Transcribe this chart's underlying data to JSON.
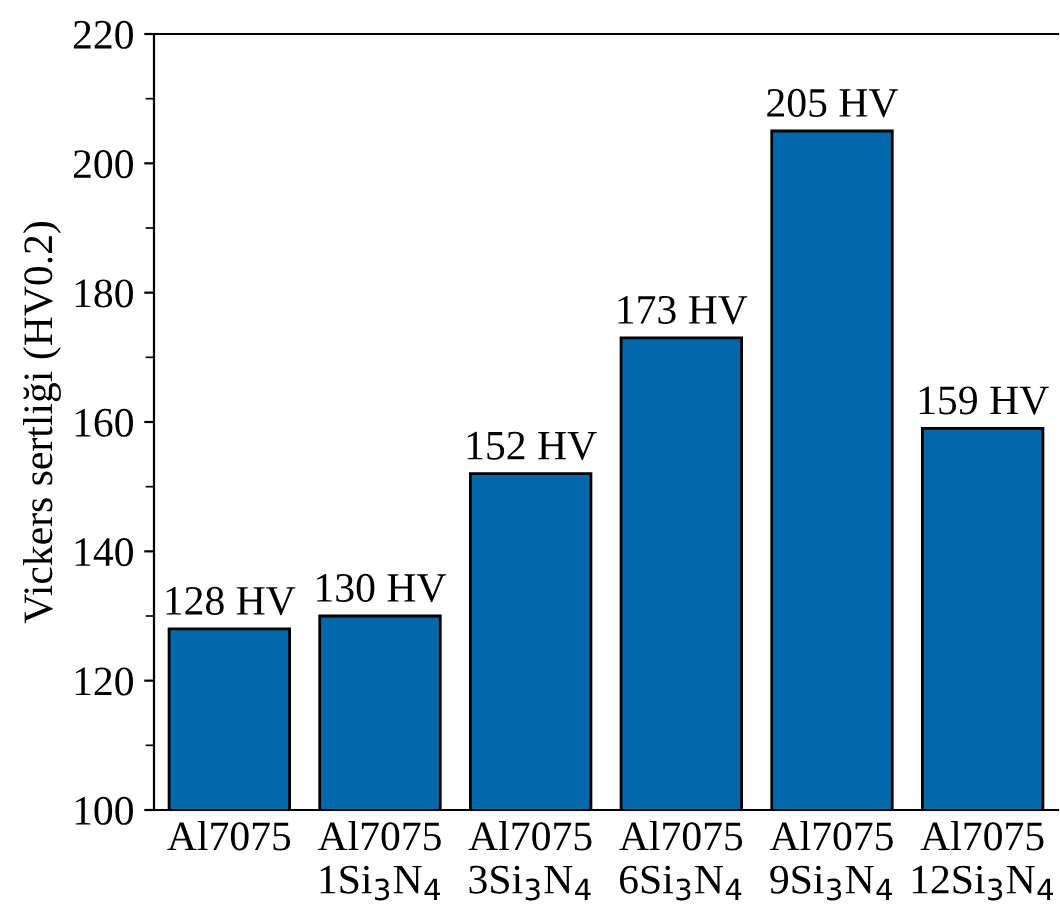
{
  "chart_data": {
    "type": "bar",
    "ylabel": "Vickers sertliği (HV0.2)",
    "categories": [
      "Al7075",
      "Al7075\n1Si$_{3}$N$_{4}$",
      "Al7075\n3Si$_{3}$N$_{4}$",
      "Al7075\n6Si$_{3}$N$_{4}$",
      "Al7075\n9Si$_{3}$N$_{4}$",
      "Al7075\n12Si$_{3}$N$_{4}$"
    ],
    "values": [
      128,
      130,
      152,
      173,
      205,
      159
    ],
    "value_labels": [
      "128 HV",
      "130 HV",
      "152 HV",
      "173 HV",
      "205 HV",
      "159 HV"
    ],
    "color": "#0068ab",
    "ylim": [
      100,
      220
    ],
    "yticks": [
      100,
      120,
      140,
      160,
      180,
      200,
      220
    ],
    "grid": false
  }
}
